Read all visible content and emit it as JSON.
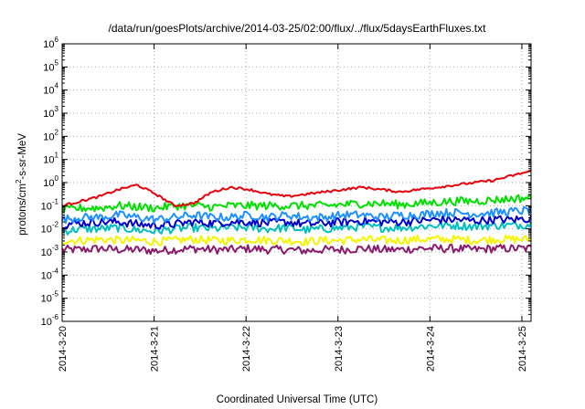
{
  "chart_data": {
    "type": "line",
    "title": "/data/run/goesPlots/archive/2014-03-25/02:00/flux/../flux/5daysEarthFluxes.txt",
    "xlabel": "Coordinated Universal Time (UTC)",
    "ylabel": "protons/cm²-s-sr-MeV",
    "ylabel_parts": {
      "base": "protons/cm",
      "sup": "2",
      "rest": "-s-sr-MeV"
    },
    "yscale": "log",
    "ylim_exponents": [
      -6,
      6
    ],
    "y_tick_exponents": [
      -6,
      -5,
      -4,
      -3,
      -2,
      -1,
      0,
      1,
      2,
      3,
      4,
      5,
      6
    ],
    "y_tick_base": "10",
    "x_ticks": [
      "2014-3-20",
      "2014-3-21",
      "2014-3-22",
      "2014-3-23",
      "2014-3-24",
      "2014-3-25"
    ],
    "x_range_days": [
      0,
      5.1
    ],
    "grid": true,
    "series": [
      {
        "color": "#e8000b",
        "level_log10": [
          -1.0,
          -0.8,
          -0.6,
          -0.3,
          -0.1,
          -0.5,
          -1.0,
          -0.9,
          -0.4,
          -0.2,
          -0.3,
          -0.5,
          -0.6,
          -0.5,
          -0.4,
          -0.3,
          -0.2,
          -0.3,
          -0.4,
          -0.3,
          -0.2,
          -0.1,
          0.0,
          0.1,
          0.3,
          0.5
        ]
      },
      {
        "color": "#00e000",
        "level_log10": [
          -1.2,
          -1.1,
          -1.1,
          -1.0,
          -1.05,
          -1.1,
          -1.0,
          -1.0,
          -1.05,
          -1.0,
          -1.0,
          -1.0,
          -1.0,
          -1.0,
          -1.0,
          -0.95,
          -0.9,
          -0.9,
          -0.95,
          -0.9,
          -0.85,
          -0.8,
          -0.8,
          -0.75,
          -0.7,
          -0.65
        ]
      },
      {
        "color": "#1e90ff",
        "level_log10": [
          -1.6,
          -1.5,
          -1.5,
          -1.4,
          -1.5,
          -1.6,
          -1.5,
          -1.4,
          -1.5,
          -1.5,
          -1.4,
          -1.5,
          -1.4,
          -1.5,
          -1.5,
          -1.4,
          -1.4,
          -1.5,
          -1.4,
          -1.4,
          -1.3,
          -1.3,
          -1.35,
          -1.3,
          -1.25,
          -1.2
        ]
      },
      {
        "color": "#0000cd",
        "level_log10": [
          -1.8,
          -1.75,
          -1.7,
          -1.7,
          -1.8,
          -1.85,
          -1.8,
          -1.7,
          -1.75,
          -1.7,
          -1.7,
          -1.75,
          -1.7,
          -1.8,
          -1.75,
          -1.7,
          -1.65,
          -1.7,
          -1.7,
          -1.65,
          -1.6,
          -1.6,
          -1.65,
          -1.6,
          -1.6,
          -1.55
        ]
      },
      {
        "color": "#00bfbf",
        "level_log10": [
          -2.1,
          -2.0,
          -2.0,
          -1.95,
          -2.05,
          -2.1,
          -2.0,
          -1.95,
          -2.0,
          -1.95,
          -1.95,
          -2.0,
          -1.95,
          -2.05,
          -2.0,
          -1.95,
          -1.9,
          -1.95,
          -1.95,
          -1.9,
          -1.85,
          -1.85,
          -1.9,
          -1.85,
          -1.85,
          -1.8
        ]
      },
      {
        "color": "#f5f500",
        "level_log10": [
          -2.5,
          -2.5,
          -2.45,
          -2.5,
          -2.5,
          -2.55,
          -2.5,
          -2.45,
          -2.5,
          -2.5,
          -2.45,
          -2.5,
          -2.5,
          -2.55,
          -2.5,
          -2.5,
          -2.45,
          -2.5,
          -2.5,
          -2.45,
          -2.45,
          -2.45,
          -2.5,
          -2.45,
          -2.45,
          -2.45
        ]
      },
      {
        "color": "#8b1a6b",
        "level_log10": [
          -2.9,
          -2.9,
          -2.85,
          -2.9,
          -2.9,
          -2.95,
          -2.9,
          -2.85,
          -2.9,
          -2.9,
          -2.85,
          -2.9,
          -2.9,
          -2.95,
          -2.9,
          -2.9,
          -2.85,
          -2.9,
          -2.9,
          -2.85,
          -2.85,
          -2.85,
          -2.9,
          -2.85,
          -2.85,
          -2.85
        ]
      }
    ]
  }
}
